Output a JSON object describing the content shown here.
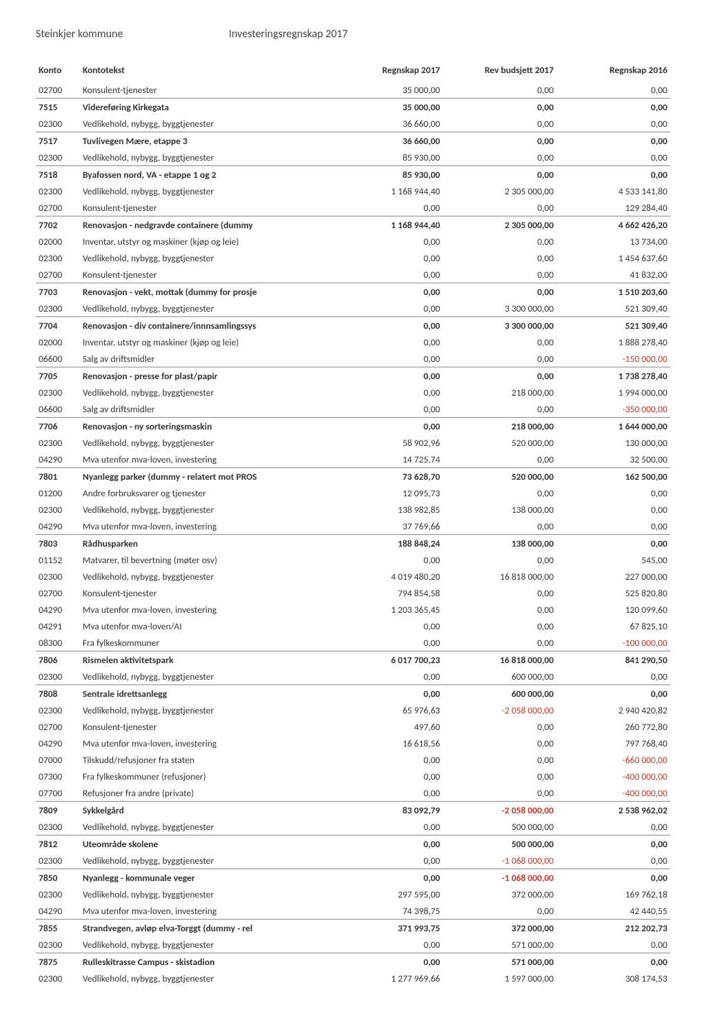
{
  "header": {
    "org": "Steinkjer kommune",
    "title": "Investeringsregnskap 2017"
  },
  "columns": {
    "konto": "Konto",
    "tekst": "Kontotekst",
    "r2017": "Regnskap 2017",
    "bud2017": "Rev budsjett 2017",
    "r2016": "Regnskap 2016"
  },
  "rows": [
    {
      "konto": "02700",
      "tekst": "Konsulent-tjenester",
      "r2017": "35 000,00",
      "bud2017": "0,00",
      "r2016": "0,00"
    },
    {
      "konto": "7515",
      "tekst": "Videreføring Kirkegata",
      "r2017": "35 000,00",
      "bud2017": "0,00",
      "r2016": "0,00",
      "subtotal": true
    },
    {
      "konto": "02300",
      "tekst": "Vedlikehold, nybygg, byggtjenester",
      "r2017": "36 660,00",
      "bud2017": "0,00",
      "r2016": "0,00"
    },
    {
      "konto": "7517",
      "tekst": "Tuvlivegen Mære, etappe 3",
      "r2017": "36 660,00",
      "bud2017": "0,00",
      "r2016": "0,00",
      "subtotal": true
    },
    {
      "konto": "02300",
      "tekst": "Vedlikehold, nybygg, byggtjenester",
      "r2017": "85 930,00",
      "bud2017": "0,00",
      "r2016": "0,00"
    },
    {
      "konto": "7518",
      "tekst": "Byafossen nord, VA - etappe 1 og 2",
      "r2017": "85 930,00",
      "bud2017": "0,00",
      "r2016": "0,00",
      "subtotal": true
    },
    {
      "konto": "02300",
      "tekst": "Vedlikehold, nybygg, byggtjenester",
      "r2017": "1 168 944,40",
      "bud2017": "2 305 000,00",
      "r2016": "4 533 141,80"
    },
    {
      "konto": "02700",
      "tekst": "Konsulent-tjenester",
      "r2017": "0,00",
      "bud2017": "0,00",
      "r2016": "129 284,40"
    },
    {
      "konto": "7702",
      "tekst": "Renovasjon - nedgravde containere (dummy",
      "r2017": "1 168 944,40",
      "bud2017": "2 305 000,00",
      "r2016": "4 662 426,20",
      "subtotal": true
    },
    {
      "konto": "02000",
      "tekst": "Inventar, utstyr og maskiner (kjøp og leie)",
      "r2017": "0,00",
      "bud2017": "0,00",
      "r2016": "13 734,00"
    },
    {
      "konto": "02300",
      "tekst": "Vedlikehold, nybygg, byggtjenester",
      "r2017": "0,00",
      "bud2017": "0,00",
      "r2016": "1 454 637,60"
    },
    {
      "konto": "02700",
      "tekst": "Konsulent-tjenester",
      "r2017": "0,00",
      "bud2017": "0,00",
      "r2016": "41 832,00"
    },
    {
      "konto": "7703",
      "tekst": "Renovasjon - vekt, mottak (dummy for prosje",
      "r2017": "0,00",
      "bud2017": "0,00",
      "r2016": "1 510 203,60",
      "subtotal": true
    },
    {
      "konto": "02300",
      "tekst": "Vedlikehold, nybygg, byggtjenester",
      "r2017": "0,00",
      "bud2017": "3 300 000,00",
      "r2016": "521 309,40"
    },
    {
      "konto": "7704",
      "tekst": "Renovasjon - div containere/innnsamlingssys",
      "r2017": "0,00",
      "bud2017": "3 300 000,00",
      "r2016": "521 309,40",
      "subtotal": true
    },
    {
      "konto": "02000",
      "tekst": "Inventar, utstyr og maskiner (kjøp og leie)",
      "r2017": "0,00",
      "bud2017": "0,00",
      "r2016": "1 888 278,40"
    },
    {
      "konto": "06600",
      "tekst": "Salg av driftsmidler",
      "r2017": "0,00",
      "bud2017": "0,00",
      "r2016": "-150 000,00",
      "r2016_neg": true
    },
    {
      "konto": "7705",
      "tekst": "Renovasjon - presse for plast/papir",
      "r2017": "0,00",
      "bud2017": "0,00",
      "r2016": "1 738 278,40",
      "subtotal": true
    },
    {
      "konto": "02300",
      "tekst": "Vedlikehold, nybygg, byggtjenester",
      "r2017": "0,00",
      "bud2017": "218 000,00",
      "r2016": "1 994 000,00"
    },
    {
      "konto": "06600",
      "tekst": "Salg av driftsmidler",
      "r2017": "0,00",
      "bud2017": "0,00",
      "r2016": "-350 000,00",
      "r2016_neg": true
    },
    {
      "konto": "7706",
      "tekst": "Renovasjon - ny sorteringsmaskin",
      "r2017": "0,00",
      "bud2017": "218 000,00",
      "r2016": "1 644 000,00",
      "subtotal": true
    },
    {
      "konto": "02300",
      "tekst": "Vedlikehold, nybygg, byggtjenester",
      "r2017": "58 902,96",
      "bud2017": "520 000,00",
      "r2016": "130 000,00"
    },
    {
      "konto": "04290",
      "tekst": "Mva utenfor mva-loven, investering",
      "r2017": "14 725,74",
      "bud2017": "0,00",
      "r2016": "32 500,00"
    },
    {
      "konto": "7801",
      "tekst": "Nyanlegg parker (dummy - relatert mot PROS",
      "r2017": "73 628,70",
      "bud2017": "520 000,00",
      "r2016": "162 500,00",
      "subtotal": true
    },
    {
      "konto": "01200",
      "tekst": "Andre forbruksvarer og tjenester",
      "r2017": "12 095,73",
      "bud2017": "0,00",
      "r2016": "0,00"
    },
    {
      "konto": "02300",
      "tekst": "Vedlikehold, nybygg, byggtjenester",
      "r2017": "138 982,85",
      "bud2017": "138 000,00",
      "r2016": "0,00"
    },
    {
      "konto": "04290",
      "tekst": "Mva utenfor mva-loven, investering",
      "r2017": "37 769,66",
      "bud2017": "0,00",
      "r2016": "0,00"
    },
    {
      "konto": "7803",
      "tekst": "Rådhusparken",
      "r2017": "188 848,24",
      "bud2017": "138 000,00",
      "r2016": "0,00",
      "subtotal": true
    },
    {
      "konto": "01152",
      "tekst": "Matvarer, til bevertning (møter osv)",
      "r2017": "0,00",
      "bud2017": "0,00",
      "r2016": "545,00"
    },
    {
      "konto": "02300",
      "tekst": "Vedlikehold, nybygg, byggtjenester",
      "r2017": "4 019 480,20",
      "bud2017": "16 818 000,00",
      "r2016": "227 000,00"
    },
    {
      "konto": "02700",
      "tekst": "Konsulent-tjenester",
      "r2017": "794 854,58",
      "bud2017": "0,00",
      "r2016": "525 820,80"
    },
    {
      "konto": "04290",
      "tekst": "Mva utenfor mva-loven, investering",
      "r2017": "1 203 365,45",
      "bud2017": "0,00",
      "r2016": "120 099,60"
    },
    {
      "konto": "04291",
      "tekst": "Mva utenfor mva-loven/AI",
      "r2017": "0,00",
      "bud2017": "0,00",
      "r2016": "67 825,10"
    },
    {
      "konto": "08300",
      "tekst": "Fra fylkeskommuner",
      "r2017": "0,00",
      "bud2017": "0,00",
      "r2016": "-100 000,00",
      "r2016_neg": true
    },
    {
      "konto": "7806",
      "tekst": "Rismelen aktivitetspark",
      "r2017": "6 017 700,23",
      "bud2017": "16 818 000,00",
      "r2016": "841 290,50",
      "subtotal": true
    },
    {
      "konto": "02300",
      "tekst": "Vedlikehold, nybygg, byggtjenester",
      "r2017": "0,00",
      "bud2017": "600 000,00",
      "r2016": "0,00"
    },
    {
      "konto": "7808",
      "tekst": "Sentrale idrettsanlegg",
      "r2017": "0,00",
      "bud2017": "600 000,00",
      "r2016": "0,00",
      "subtotal": true
    },
    {
      "konto": "02300",
      "tekst": "Vedlikehold, nybygg, byggtjenester",
      "r2017": "65 976,63",
      "bud2017": "-2 058 000,00",
      "bud2017_neg": true,
      "r2016": "2 940 420,82"
    },
    {
      "konto": "02700",
      "tekst": "Konsulent-tjenester",
      "r2017": "497,60",
      "bud2017": "0,00",
      "r2016": "260 772,80"
    },
    {
      "konto": "04290",
      "tekst": "Mva utenfor mva-loven, investering",
      "r2017": "16 618,56",
      "bud2017": "0,00",
      "r2016": "797 768,40"
    },
    {
      "konto": "07000",
      "tekst": "Tilskudd/refusjoner fra staten",
      "r2017": "0,00",
      "bud2017": "0,00",
      "r2016": "-660 000,00",
      "r2016_neg": true
    },
    {
      "konto": "07300",
      "tekst": "Fra fylkeskommuner (refusjoner)",
      "r2017": "0,00",
      "bud2017": "0,00",
      "r2016": "-400 000,00",
      "r2016_neg": true
    },
    {
      "konto": "07700",
      "tekst": "Refusjoner fra andre (private)",
      "r2017": "0,00",
      "bud2017": "0,00",
      "r2016": "-400 000,00",
      "r2016_neg": true
    },
    {
      "konto": "7809",
      "tekst": "Sykkelgård",
      "r2017": "83 092,79",
      "bud2017": "-2 058 000,00",
      "bud2017_neg": true,
      "r2016": "2 538 962,02",
      "subtotal": true
    },
    {
      "konto": "02300",
      "tekst": "Vedlikehold, nybygg, byggtjenester",
      "r2017": "0,00",
      "bud2017": "500 000,00",
      "r2016": "0,00"
    },
    {
      "konto": "7812",
      "tekst": "Uteområde skolene",
      "r2017": "0,00",
      "bud2017": "500 000,00",
      "r2016": "0,00",
      "subtotal": true
    },
    {
      "konto": "02300",
      "tekst": "Vedlikehold, nybygg, byggtjenester",
      "r2017": "0,00",
      "bud2017": "-1 068 000,00",
      "bud2017_neg": true,
      "r2016": "0,00"
    },
    {
      "konto": "7850",
      "tekst": "Nyanlegg - kommunale veger",
      "r2017": "0,00",
      "bud2017": "-1 068 000,00",
      "bud2017_neg": true,
      "r2016": "0,00",
      "subtotal": true
    },
    {
      "konto": "02300",
      "tekst": "Vedlikehold, nybygg, byggtjenester",
      "r2017": "297 595,00",
      "bud2017": "372 000,00",
      "r2016": "169 762,18"
    },
    {
      "konto": "04290",
      "tekst": "Mva utenfor mva-loven, investering",
      "r2017": "74 398,75",
      "bud2017": "0,00",
      "r2016": "42 440,55"
    },
    {
      "konto": "7855",
      "tekst": "Strandvegen, avløp elva-Torggt (dummy - rel",
      "r2017": "371 993,75",
      "bud2017": "372 000,00",
      "r2016": "212 202,73",
      "subtotal": true
    },
    {
      "konto": "02300",
      "tekst": "Vedlikehold, nybygg, byggtjenester",
      "r2017": "0,00",
      "bud2017": "571 000,00",
      "r2016": "0,00"
    },
    {
      "konto": "7875",
      "tekst": "Rulleskitrasse Campus - skistadion",
      "r2017": "0,00",
      "bud2017": "571 000,00",
      "r2016": "0,00",
      "subtotal": true
    },
    {
      "konto": "02300",
      "tekst": "Vedlikehold, nybygg, byggtjenester",
      "r2017": "1 277 969,66",
      "bud2017": "1 597 000,00",
      "r2016": "308 174,53"
    }
  ]
}
